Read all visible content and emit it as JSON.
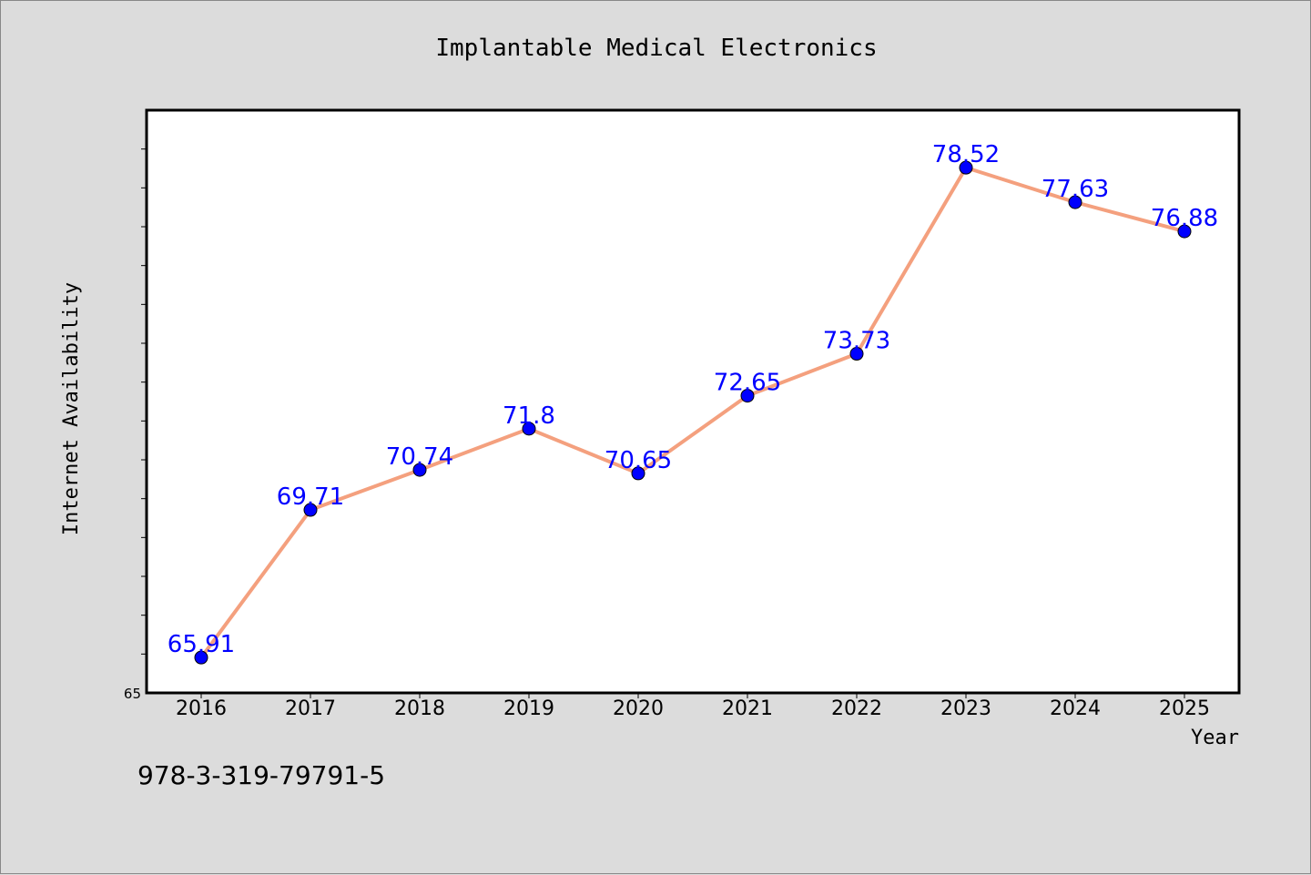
{
  "chart_data": {
    "type": "line",
    "title": "Implantable Medical Electronics",
    "xlabel": "Year",
    "ylabel": "Internet Availability",
    "categories": [
      "2016",
      "2017",
      "2018",
      "2019",
      "2020",
      "2021",
      "2022",
      "2023",
      "2024",
      "2025"
    ],
    "series": [
      {
        "values": [
          65.91,
          69.71,
          70.74,
          71.8,
          70.65,
          72.65,
          73.73,
          78.52,
          77.63,
          76.88
        ],
        "labels": [
          "65.91",
          "69.71",
          "70.74",
          "71.8",
          "70.65",
          "72.65",
          "73.73",
          "78.52",
          "77.63",
          "76.88"
        ]
      }
    ],
    "ylim": [
      65,
      80
    ],
    "y_tick_labels": [
      "65"
    ],
    "grid": false,
    "legend": "none",
    "colors": {
      "line": "#f4a07e",
      "marker": "#0000ff",
      "data_label": "#0000ff",
      "plot_background": "#ffffff",
      "page_background": "#dcdcdc"
    }
  },
  "footnote": "978-3-319-79791-5"
}
